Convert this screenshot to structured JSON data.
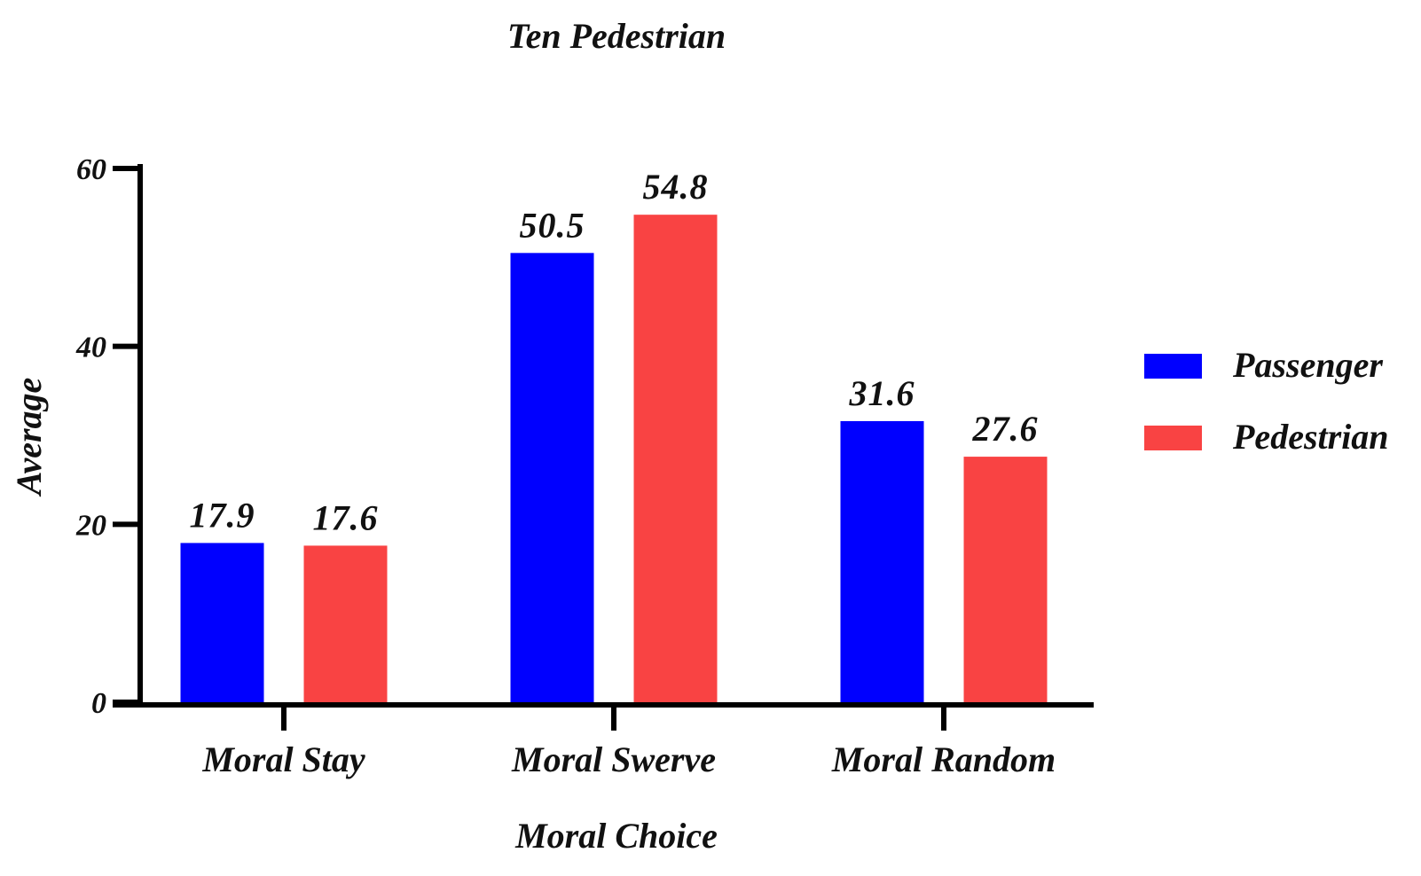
{
  "chart_data": {
    "type": "bar",
    "title": "Ten Pedestrian",
    "xlabel": "Moral Choice",
    "ylabel": "Average",
    "categories": [
      "Moral Stay",
      "Moral Swerve",
      "Moral Random"
    ],
    "series": [
      {
        "name": "Passenger",
        "color": "#0000ff",
        "values": [
          17.9,
          50.5,
          31.6
        ]
      },
      {
        "name": "Pedestrian",
        "color": "#f94343",
        "values": [
          17.6,
          54.8,
          27.6
        ]
      }
    ],
    "ylim": [
      0,
      60
    ],
    "yticks": [
      0,
      20,
      40,
      60
    ],
    "grid": false,
    "legend": "right"
  }
}
